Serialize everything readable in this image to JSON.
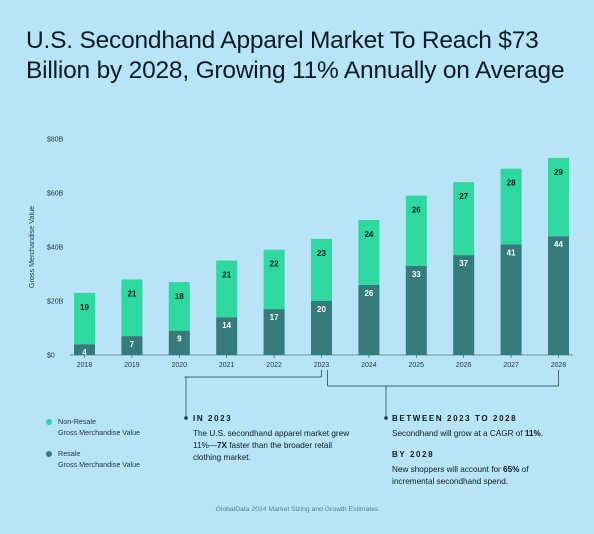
{
  "title": "U.S. Secondhand Apparel Market To Reach $73 Billion by 2028, Growing 11% Annually on Average",
  "chart_data": {
    "type": "bar",
    "stacked": true,
    "ylabel": "Gross Merchandise Value",
    "ylim": [
      0,
      80
    ],
    "yticks": [
      "$0",
      "$20B",
      "$40B",
      "$60B",
      "$80B"
    ],
    "categories": [
      "2018",
      "2019",
      "2020",
      "2021",
      "2022",
      "2023",
      "2024",
      "2025",
      "2026",
      "2027",
      "2028"
    ],
    "series": [
      {
        "name": "Resale Gross Merchandise Value",
        "color": "#367b7b",
        "label_color": "#ffffff",
        "values": [
          4,
          7,
          9,
          14,
          17,
          20,
          26,
          33,
          37,
          41,
          44
        ]
      },
      {
        "name": "Non-Resale Gross Merchandise Value",
        "color": "#2ed89f",
        "label_color": "#0b1b24",
        "values": [
          19,
          21,
          18,
          21,
          22,
          23,
          24,
          26,
          27,
          28,
          29
        ]
      }
    ],
    "grid": false,
    "legend": "bottom-left"
  },
  "legend": {
    "items": [
      {
        "label": "Non-Resale",
        "sub": "Gross Merchandise Value",
        "color": "#2ed89f"
      },
      {
        "label": "Resale",
        "sub": "Gross Merchandise Value",
        "color": "#367b7b"
      }
    ]
  },
  "annotations": {
    "in2023": {
      "heading": "IN 2023",
      "text1": "The U.S. secondhand apparel market grew 11%—",
      "bold1": "7X",
      "text2": " faster than the broader retail clothing market."
    },
    "between": {
      "heading": "BETWEEN 2023 TO 2028",
      "text1": "Secondhand will grow at a CAGR of ",
      "bold1": "11%",
      "text2": "."
    },
    "by2028": {
      "heading": "BY 2028",
      "text1": "New shoppers will account for ",
      "bold1": "65%",
      "text2": " of incremental secondhand spend."
    }
  },
  "source": "GlobalData 2024 Market Sizing and Growth Estimates"
}
